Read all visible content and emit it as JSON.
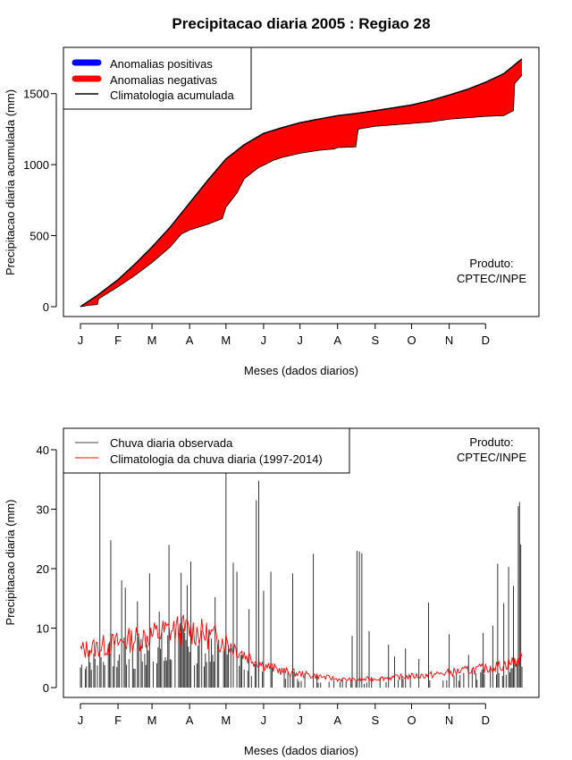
{
  "page": {
    "title": "Precipitacao diaria 2005 : Regiao 28"
  },
  "chart_data": [
    {
      "type": "area",
      "name": "accumulated",
      "ylabel": "Precipitacao diaria acumulada (mm)",
      "xlabel": "Meses (dados diarios)",
      "ylim": [
        0,
        1750
      ],
      "yticks": [
        0,
        500,
        1000,
        1500
      ],
      "xlim": [
        1,
        365
      ],
      "month_ticks": [
        "J",
        "F",
        "M",
        "A",
        "M",
        "J",
        "J",
        "A",
        "S",
        "O",
        "N",
        "D"
      ],
      "month_days": [
        1,
        32,
        60,
        91,
        121,
        152,
        182,
        213,
        244,
        274,
        305,
        335
      ],
      "legend": {
        "position": "top-left",
        "entries": [
          {
            "label": "Anomalias positivas",
            "color": "#0000ff"
          },
          {
            "label": "Anomalias negativas",
            "color": "#ff0000"
          },
          {
            "label": "Climatologia acumulada",
            "color": "#000000"
          }
        ]
      },
      "annotation": [
        "Produto:",
        "CPTEC/INPE"
      ],
      "series": [
        {
          "name": "Climatologia acumulada",
          "x": [
            1,
            15,
            32,
            46,
            60,
            75,
            91,
            106,
            121,
            136,
            152,
            167,
            182,
            197,
            213,
            228,
            244,
            259,
            274,
            289,
            305,
            320,
            335,
            350,
            365
          ],
          "values": [
            0,
            80,
            190,
            300,
            420,
            560,
            730,
            890,
            1040,
            1140,
            1220,
            1260,
            1295,
            1320,
            1345,
            1360,
            1380,
            1400,
            1420,
            1450,
            1490,
            1530,
            1580,
            1640,
            1745
          ]
        },
        {
          "name": "Observada acumulada",
          "x": [
            1,
            8,
            15,
            16,
            32,
            46,
            60,
            75,
            84,
            91,
            106,
            118,
            121,
            130,
            136,
            148,
            152,
            160,
            167,
            172,
            182,
            197,
            210,
            213,
            228,
            230,
            244,
            259,
            274,
            289,
            305,
            320,
            335,
            350,
            358,
            359,
            365
          ],
          "values": [
            0,
            10,
            15,
            55,
            140,
            220,
            310,
            420,
            510,
            540,
            580,
            620,
            700,
            800,
            900,
            980,
            995,
            1030,
            1050,
            1060,
            1080,
            1100,
            1110,
            1120,
            1125,
            1250,
            1270,
            1280,
            1290,
            1300,
            1320,
            1330,
            1340,
            1345,
            1380,
            1570,
            1630
          ]
        }
      ]
    },
    {
      "type": "bar",
      "name": "daily",
      "ylabel": "Precipitacao diaria (mm)",
      "xlabel": "Meses (dados diarios)",
      "ylim": [
        0,
        42
      ],
      "yticks": [
        0,
        10,
        20,
        30,
        40
      ],
      "xlim": [
        1,
        365
      ],
      "month_ticks": [
        "J",
        "F",
        "M",
        "A",
        "M",
        "J",
        "J",
        "A",
        "S",
        "O",
        "N",
        "D"
      ],
      "month_days": [
        1,
        32,
        60,
        91,
        121,
        152,
        182,
        213,
        244,
        274,
        305,
        335
      ],
      "legend": {
        "position": "top-left",
        "entries": [
          {
            "label": "Chuva diaria observada",
            "color": "#444444"
          },
          {
            "label": "Climatologia da chuva diaria (1997-2014)",
            "color": "#ff0000"
          }
        ]
      },
      "annotation": [
        "Produto:",
        "CPTEC/INPE"
      ],
      "peaks": [
        {
          "day": 17,
          "value": 36.5
        },
        {
          "day": 26,
          "value": 24.8
        },
        {
          "day": 35,
          "value": 18
        },
        {
          "day": 38,
          "value": 16.8
        },
        {
          "day": 48,
          "value": 14.5
        },
        {
          "day": 58,
          "value": 19.2
        },
        {
          "day": 66,
          "value": 12.8
        },
        {
          "day": 74,
          "value": 24
        },
        {
          "day": 84,
          "value": 19.3
        },
        {
          "day": 89,
          "value": 17.2
        },
        {
          "day": 92,
          "value": 21.2
        },
        {
          "day": 112,
          "value": 15.2
        },
        {
          "day": 121,
          "value": 36.5
        },
        {
          "day": 127,
          "value": 21
        },
        {
          "day": 130,
          "value": 19.5
        },
        {
          "day": 140,
          "value": 13.2
        },
        {
          "day": 146,
          "value": 31.5
        },
        {
          "day": 148,
          "value": 34.8
        },
        {
          "day": 152,
          "value": 16.3
        },
        {
          "day": 158,
          "value": 19.5
        },
        {
          "day": 176,
          "value": 19.2
        },
        {
          "day": 193,
          "value": 22.5
        },
        {
          "day": 225,
          "value": 8.7
        },
        {
          "day": 229,
          "value": 23
        },
        {
          "day": 231,
          "value": 22.9
        },
        {
          "day": 233,
          "value": 22.6
        },
        {
          "day": 239,
          "value": 9.5
        },
        {
          "day": 255,
          "value": 7.2
        },
        {
          "day": 260,
          "value": 5.2
        },
        {
          "day": 269,
          "value": 6.6
        },
        {
          "day": 280,
          "value": 4.8
        },
        {
          "day": 288,
          "value": 14.3
        },
        {
          "day": 305,
          "value": 9
        },
        {
          "day": 321,
          "value": 5.5
        },
        {
          "day": 333,
          "value": 9.2
        },
        {
          "day": 341,
          "value": 10.4
        },
        {
          "day": 345,
          "value": 20.8
        },
        {
          "day": 350,
          "value": 14.2
        },
        {
          "day": 354,
          "value": 20.3
        },
        {
          "day": 358,
          "value": 17.1
        },
        {
          "day": 362,
          "value": 30.5
        },
        {
          "day": 363,
          "value": 31.2
        },
        {
          "day": 364,
          "value": 24.1
        }
      ],
      "climatology": {
        "x": [
          1,
          15,
          32,
          46,
          60,
          75,
          91,
          106,
          121,
          136,
          152,
          167,
          182,
          197,
          213,
          228,
          244,
          259,
          274,
          289,
          305,
          320,
          335,
          350,
          365
        ],
        "values": [
          6.2,
          6.8,
          7.5,
          8.2,
          8.8,
          9.6,
          9.8,
          8.8,
          7.8,
          5.6,
          3.8,
          2.8,
          2.3,
          1.9,
          1.4,
          1.3,
          1.5,
          1.7,
          1.9,
          2.1,
          2.5,
          2.9,
          3.2,
          3.8,
          4.8
        ]
      }
    }
  ]
}
